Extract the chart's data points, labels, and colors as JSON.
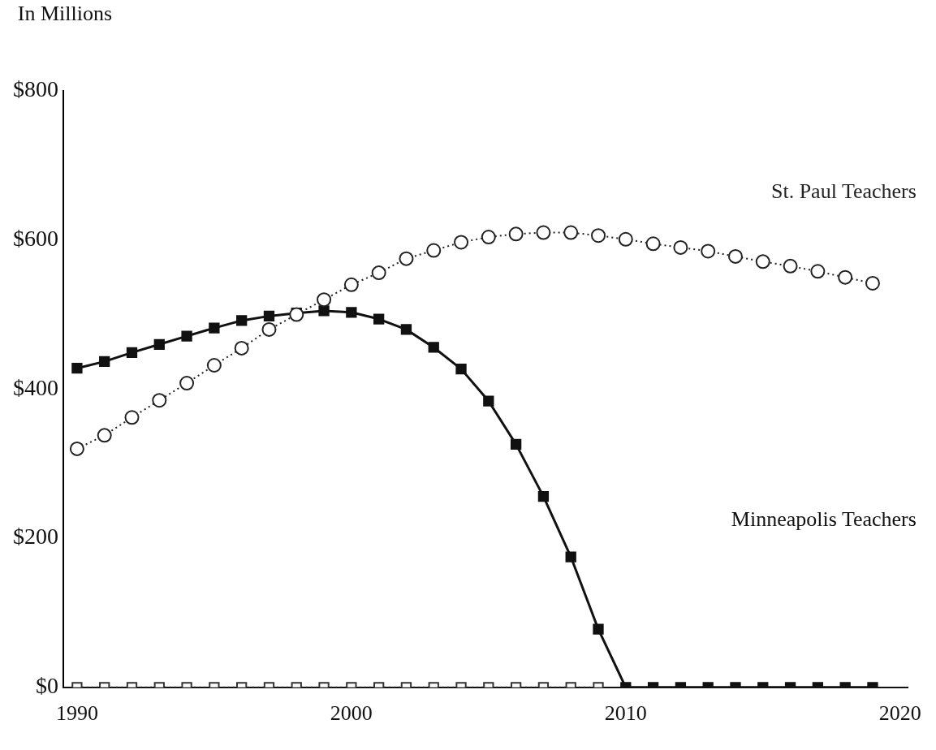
{
  "chart_data": {
    "type": "line",
    "ylabel": "In Millions",
    "x": [
      1990,
      1991,
      1992,
      1993,
      1994,
      1995,
      1996,
      1997,
      1998,
      1999,
      2000,
      2001,
      2002,
      2003,
      2004,
      2005,
      2006,
      2007,
      2008,
      2009,
      2010,
      2011,
      2012,
      2013,
      2014,
      2015,
      2016,
      2017,
      2018,
      2019
    ],
    "series": [
      {
        "name": "St. Paul Teachers",
        "color": "#222222",
        "marker": "circle",
        "line_style": "dotted",
        "values": [
          320,
          338,
          362,
          385,
          408,
          432,
          455,
          480,
          500,
          520,
          540,
          556,
          575,
          586,
          597,
          604,
          608,
          610,
          610,
          606,
          601,
          595,
          590,
          585,
          578,
          571,
          565,
          558,
          550,
          542
        ]
      },
      {
        "name": "Minneapolis Teachers",
        "color": "#111111",
        "marker": "square",
        "line_style": "solid",
        "values": [
          428,
          437,
          449,
          460,
          471,
          482,
          492,
          498,
          502,
          505,
          503,
          494,
          480,
          456,
          427,
          384,
          326,
          256,
          175,
          78,
          0,
          0,
          0,
          0,
          0,
          0,
          0,
          0,
          0,
          0
        ]
      },
      {
        "color": "#333333",
        "marker": "square",
        "line_style": "dotted",
        "values": [
          0,
          0,
          0,
          0,
          0,
          0,
          0,
          0,
          0,
          0,
          0,
          0,
          0,
          0,
          0,
          0,
          0,
          0,
          0,
          0,
          null,
          null,
          null,
          null,
          null,
          null,
          null,
          null,
          null,
          null
        ]
      }
    ],
    "xlim": [
      1989.5,
      2020.3
    ],
    "xticks": [
      1990,
      2000,
      2010,
      2020
    ],
    "ylim": [
      0,
      800
    ],
    "yticks": [
      {
        "value": 0,
        "label": "$0"
      },
      {
        "value": 200,
        "label": "$200"
      },
      {
        "value": 400,
        "label": "$400"
      },
      {
        "value": 600,
        "label": "$600"
      },
      {
        "value": 800,
        "label": "$800"
      }
    ],
    "grid": false,
    "legend": false
  }
}
